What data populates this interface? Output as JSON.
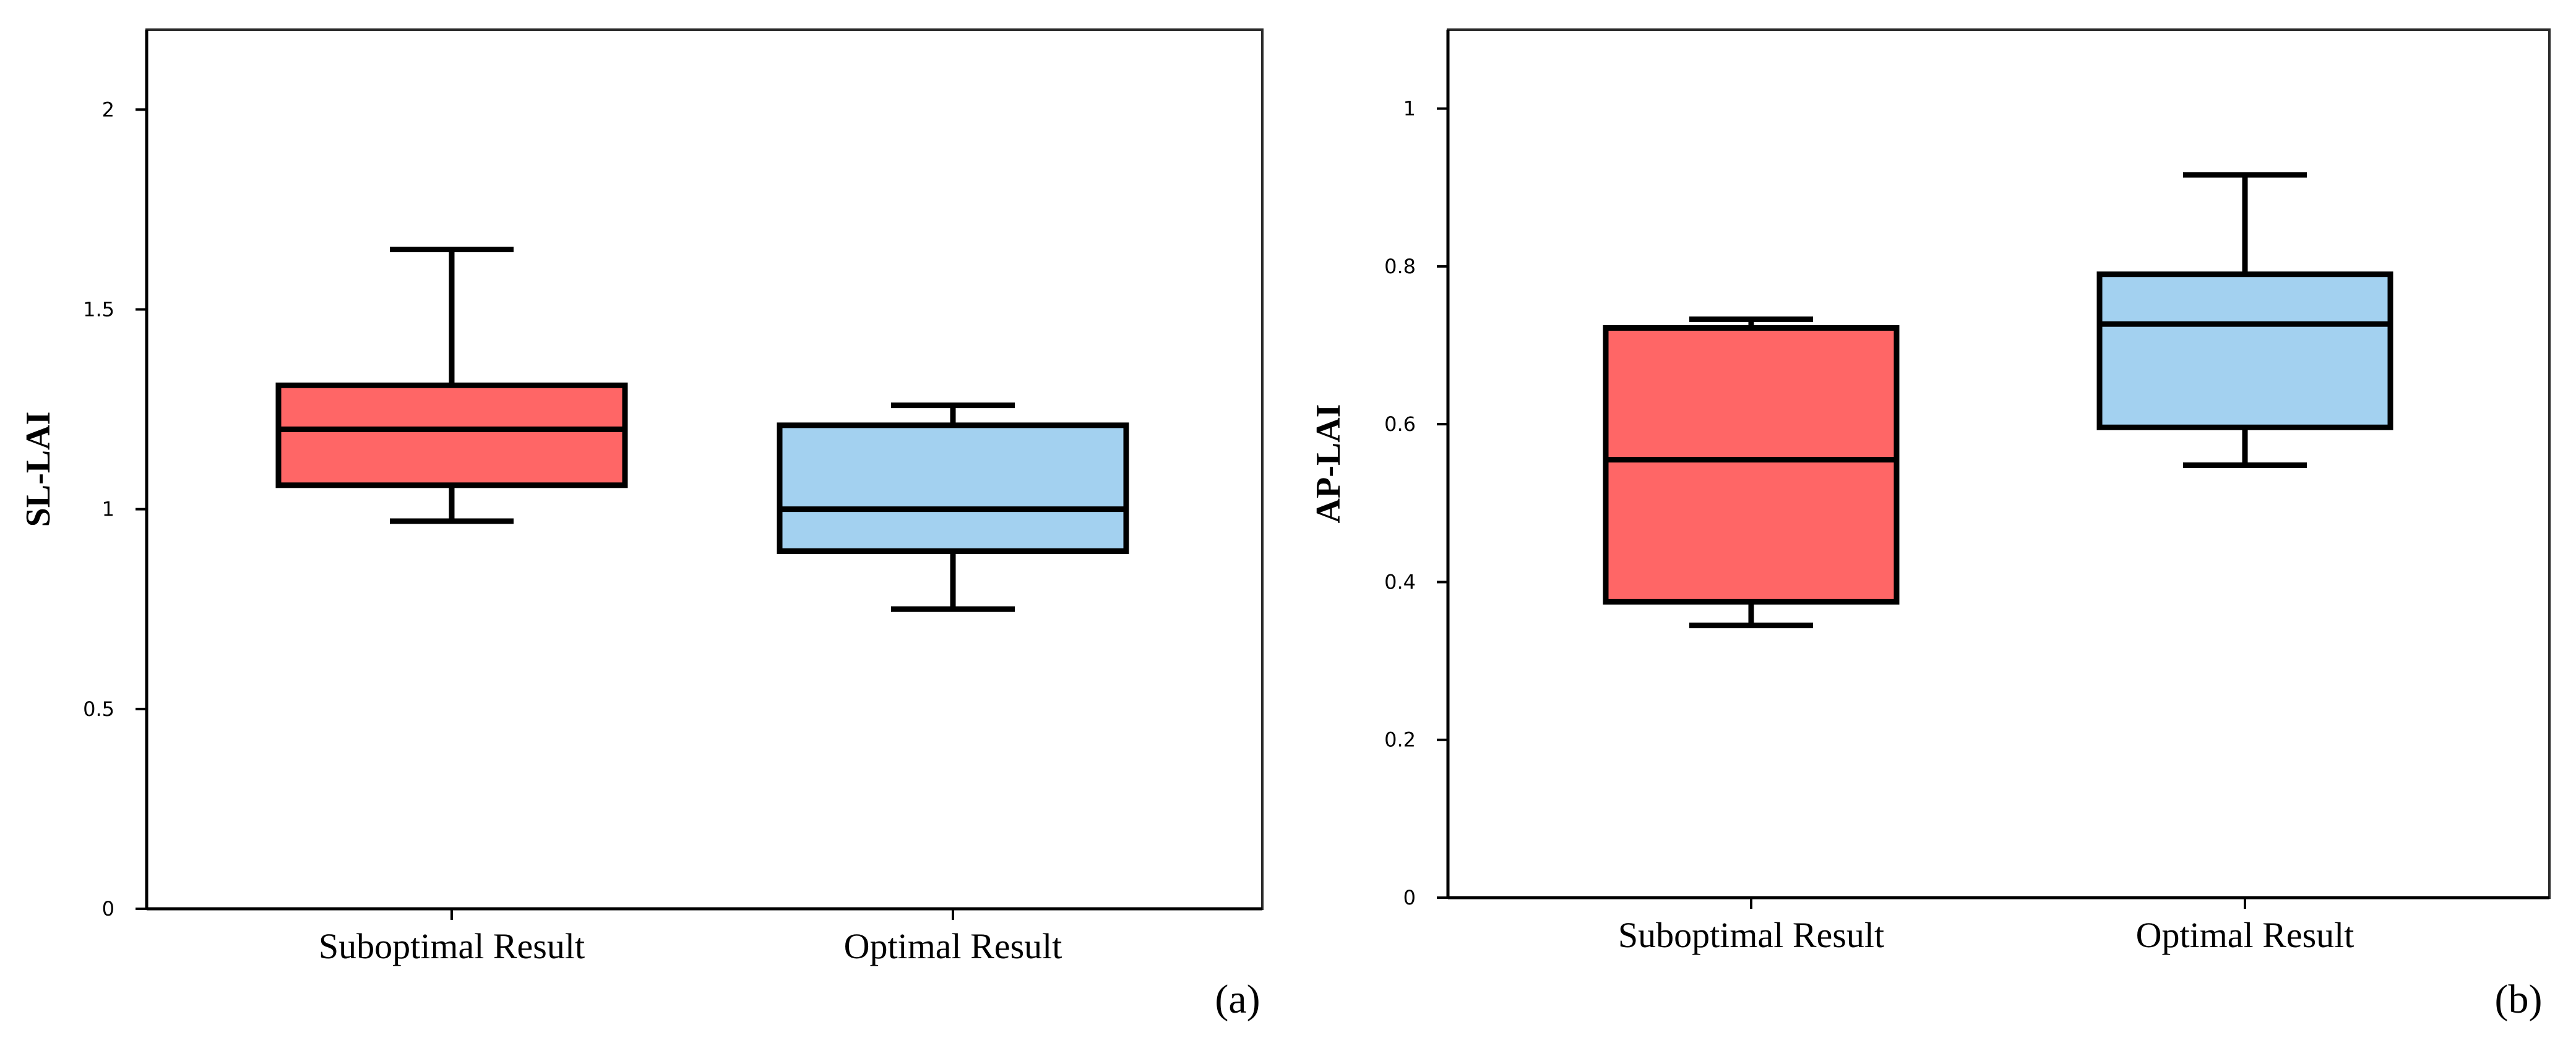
{
  "colors": {
    "suboptimal": "#ff6666",
    "optimal": "#a3d1f0",
    "line": "#000000"
  },
  "chart_data": [
    {
      "type": "box",
      "panel_label": "(a)",
      "ylabel": "SL-LAI",
      "categories": [
        "Suboptimal Result",
        "Optimal Result"
      ],
      "ylim": [
        0,
        2.2
      ],
      "yticks": [
        0,
        0.5,
        1,
        1.5,
        2
      ],
      "ytick_labels": [
        "0",
        "0.5",
        "1",
        "1.5",
        "2"
      ],
      "boxes": [
        {
          "name": "Suboptimal Result",
          "color_key": "suboptimal",
          "min": 0.97,
          "q1": 1.06,
          "median": 1.2,
          "q3": 1.31,
          "max": 1.65
        },
        {
          "name": "Optimal Result",
          "color_key": "optimal",
          "min": 0.75,
          "q1": 0.895,
          "median": 1.0,
          "q3": 1.21,
          "max": 1.26
        }
      ]
    },
    {
      "type": "box",
      "panel_label": "(b)",
      "ylabel": "AP-LAI",
      "categories": [
        "Suboptimal Result",
        "Optimal Result"
      ],
      "ylim": [
        0,
        1.1
      ],
      "yticks": [
        0,
        0.2,
        0.4,
        0.6,
        0.8,
        1
      ],
      "ytick_labels": [
        "0",
        "0.2",
        "0.4",
        "0.6",
        "0.8",
        "1"
      ],
      "boxes": [
        {
          "name": "Suboptimal Result",
          "color_key": "suboptimal",
          "min": 0.345,
          "q1": 0.375,
          "median": 0.555,
          "q3": 0.722,
          "max": 0.733
        },
        {
          "name": "Optimal Result",
          "color_key": "optimal",
          "min": 0.548,
          "q1": 0.596,
          "median": 0.727,
          "q3": 0.79,
          "max": 0.916
        }
      ]
    }
  ]
}
